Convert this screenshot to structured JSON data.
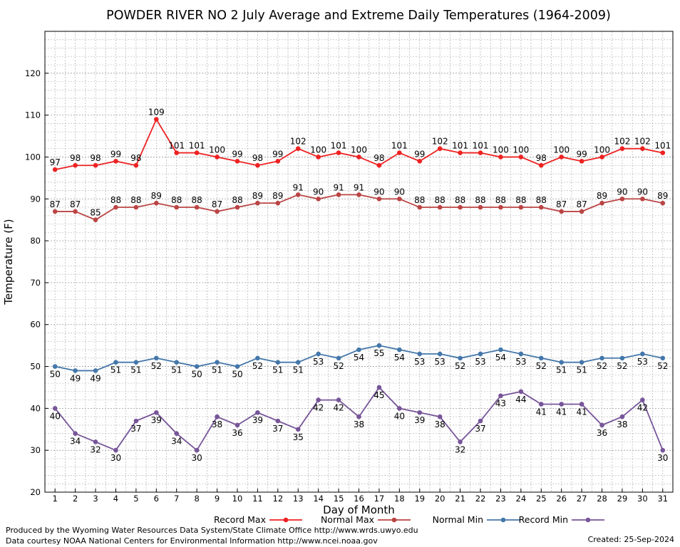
{
  "chart_data": {
    "type": "line",
    "title": "POWDER RIVER NO 2 July Average and Extreme Daily Temperatures (1964-2009)",
    "xlabel": "Day of Month",
    "ylabel": "Temperature (F)",
    "x": [
      1,
      2,
      3,
      4,
      5,
      6,
      7,
      8,
      9,
      10,
      11,
      12,
      13,
      14,
      15,
      16,
      17,
      18,
      19,
      20,
      21,
      22,
      23,
      24,
      25,
      26,
      27,
      28,
      29,
      30,
      31
    ],
    "xlim": [
      0.5,
      31.5
    ],
    "ylim": [
      20,
      130
    ],
    "yticks": [
      20,
      30,
      40,
      50,
      60,
      70,
      80,
      90,
      100,
      110,
      120
    ],
    "grid": true,
    "legend_position": "bottom",
    "series": [
      {
        "name": "Record Max",
        "color": "#ee2222",
        "label_position": "above",
        "values": [
          97,
          98,
          98,
          99,
          98,
          109,
          101,
          101,
          100,
          99,
          98,
          99,
          102,
          100,
          101,
          100,
          98,
          101,
          99,
          102,
          101,
          101,
          100,
          100,
          98,
          100,
          99,
          100,
          102,
          102,
          101
        ]
      },
      {
        "name": "Normal Max",
        "color": "#bb4444",
        "label_position": "above",
        "values": [
          87,
          87,
          85,
          88,
          88,
          89,
          88,
          88,
          87,
          88,
          89,
          89,
          91,
          90,
          91,
          91,
          90,
          90,
          88,
          88,
          88,
          88,
          88,
          88,
          88,
          87,
          87,
          89,
          90,
          90,
          89
        ]
      },
      {
        "name": "Normal Min",
        "color": "#4477aa",
        "label_position": "below",
        "values": [
          50,
          49,
          49,
          51,
          51,
          52,
          51,
          50,
          51,
          50,
          52,
          51,
          51,
          53,
          52,
          54,
          55,
          54,
          53,
          53,
          52,
          53,
          54,
          53,
          52,
          51,
          51,
          52,
          52,
          53,
          52
        ]
      },
      {
        "name": "Record Min",
        "color": "#775599",
        "label_position": "below",
        "values": [
          40,
          34,
          32,
          30,
          37,
          39,
          34,
          30,
          38,
          36,
          39,
          37,
          35,
          42,
          42,
          38,
          45,
          40,
          39,
          38,
          32,
          37,
          43,
          44,
          41,
          41,
          41,
          36,
          38,
          42,
          30
        ]
      }
    ]
  },
  "footer": {
    "credit_line1": "Produced by the Wyoming Water Resources Data System/State Climate Office http://www.wrds.uwyo.edu",
    "credit_line2": "Data courtesy NOAA National Centers for Environmental Information http://www.ncei.noaa.gov",
    "created": "Created:  25-Sep-2024"
  }
}
